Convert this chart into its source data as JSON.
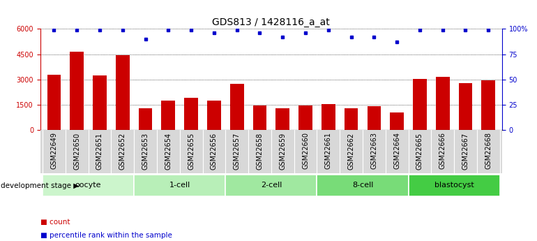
{
  "title": "GDS813 / 1428116_a_at",
  "samples": [
    "GSM22649",
    "GSM22650",
    "GSM22651",
    "GSM22652",
    "GSM22653",
    "GSM22654",
    "GSM22655",
    "GSM22656",
    "GSM22657",
    "GSM22658",
    "GSM22659",
    "GSM22660",
    "GSM22661",
    "GSM22662",
    "GSM22663",
    "GSM22664",
    "GSM22665",
    "GSM22666",
    "GSM22667",
    "GSM22668"
  ],
  "counts": [
    3300,
    4650,
    3250,
    4450,
    1300,
    1750,
    1900,
    1750,
    2750,
    1450,
    1300,
    1450,
    1550,
    1300,
    1400,
    1050,
    3050,
    3150,
    2800,
    2950
  ],
  "percentiles": [
    99,
    99,
    99,
    99,
    90,
    99,
    99,
    96,
    99,
    96,
    92,
    96,
    99,
    92,
    92,
    87,
    99,
    99,
    99,
    99
  ],
  "bar_color": "#cc0000",
  "dot_color": "#0000cc",
  "ylim_left": [
    0,
    6000
  ],
  "ylim_right": [
    0,
    100
  ],
  "yticks_left": [
    0,
    1500,
    3000,
    4500,
    6000
  ],
  "yticks_right": [
    0,
    25,
    50,
    75,
    100
  ],
  "ytick_labels_right": [
    "0",
    "25",
    "50",
    "75",
    "100%"
  ],
  "groups": [
    {
      "label": "oocyte",
      "start": 0,
      "end": 3
    },
    {
      "label": "1-cell",
      "start": 4,
      "end": 7
    },
    {
      "label": "2-cell",
      "start": 8,
      "end": 11
    },
    {
      "label": "8-cell",
      "start": 12,
      "end": 15
    },
    {
      "label": "blastocyst",
      "start": 16,
      "end": 19
    }
  ],
  "group_colors": [
    "#ccf5cc",
    "#b8efb8",
    "#a0e8a0",
    "#78dc78",
    "#44cc44"
  ],
  "legend_count_label": "count",
  "legend_pct_label": "percentile rank within the sample",
  "dev_stage_label": "development stage",
  "title_fontsize": 10,
  "tick_fontsize": 7,
  "axis_color_left": "#cc0000",
  "axis_color_right": "#0000cc",
  "xtick_bg": "#d8d8d8"
}
